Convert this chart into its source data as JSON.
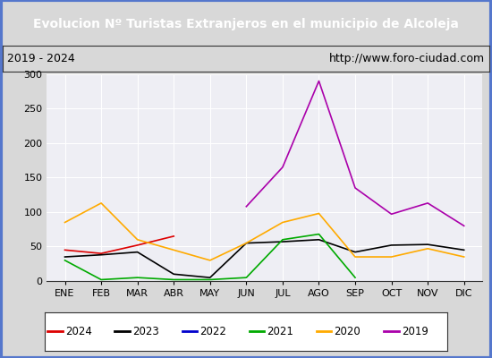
{
  "title": "Evolucion Nº Turistas Extranjeros en el municipio de Alcoleja",
  "subtitle_left": "2019 - 2024",
  "subtitle_right": "http://www.foro-ciudad.com",
  "x_labels": [
    "ENE",
    "FEB",
    "MAR",
    "ABR",
    "MAY",
    "JUN",
    "JUL",
    "AGO",
    "SEP",
    "OCT",
    "NOV",
    "DIC"
  ],
  "ylim": [
    0,
    300
  ],
  "yticks": [
    0,
    50,
    100,
    150,
    200,
    250,
    300
  ],
  "series": [
    {
      "year": "2024",
      "color": "#dd0000",
      "data": [
        45,
        40,
        52,
        65,
        null,
        null,
        null,
        null,
        null,
        null,
        null,
        null
      ]
    },
    {
      "year": "2023",
      "color": "#000000",
      "data": [
        35,
        38,
        42,
        10,
        5,
        55,
        57,
        60,
        42,
        52,
        53,
        45
      ]
    },
    {
      "year": "2022",
      "color": "#0000cc",
      "data": [
        null,
        null,
        null,
        null,
        null,
        5,
        null,
        null,
        null,
        null,
        null,
        null
      ]
    },
    {
      "year": "2021",
      "color": "#00aa00",
      "data": [
        30,
        2,
        5,
        2,
        2,
        5,
        60,
        68,
        5,
        null,
        null,
        null
      ]
    },
    {
      "year": "2020",
      "color": "#ffaa00",
      "data": [
        85,
        113,
        60,
        45,
        30,
        55,
        85,
        98,
        35,
        35,
        47,
        35
      ]
    },
    {
      "year": "2019",
      "color": "#aa00aa",
      "data": [
        null,
        null,
        null,
        null,
        null,
        108,
        165,
        290,
        135,
        97,
        113,
        80
      ]
    }
  ],
  "fig_bg": "#d8d8d8",
  "plot_bg": "#eeeef4",
  "title_bg": "#4472c4",
  "title_fg": "#ffffff",
  "subtitle_bg": "#d8d8d8",
  "legend_bg": "#ffffff",
  "grid_color": "#ffffff",
  "border_color": "#5577cc"
}
